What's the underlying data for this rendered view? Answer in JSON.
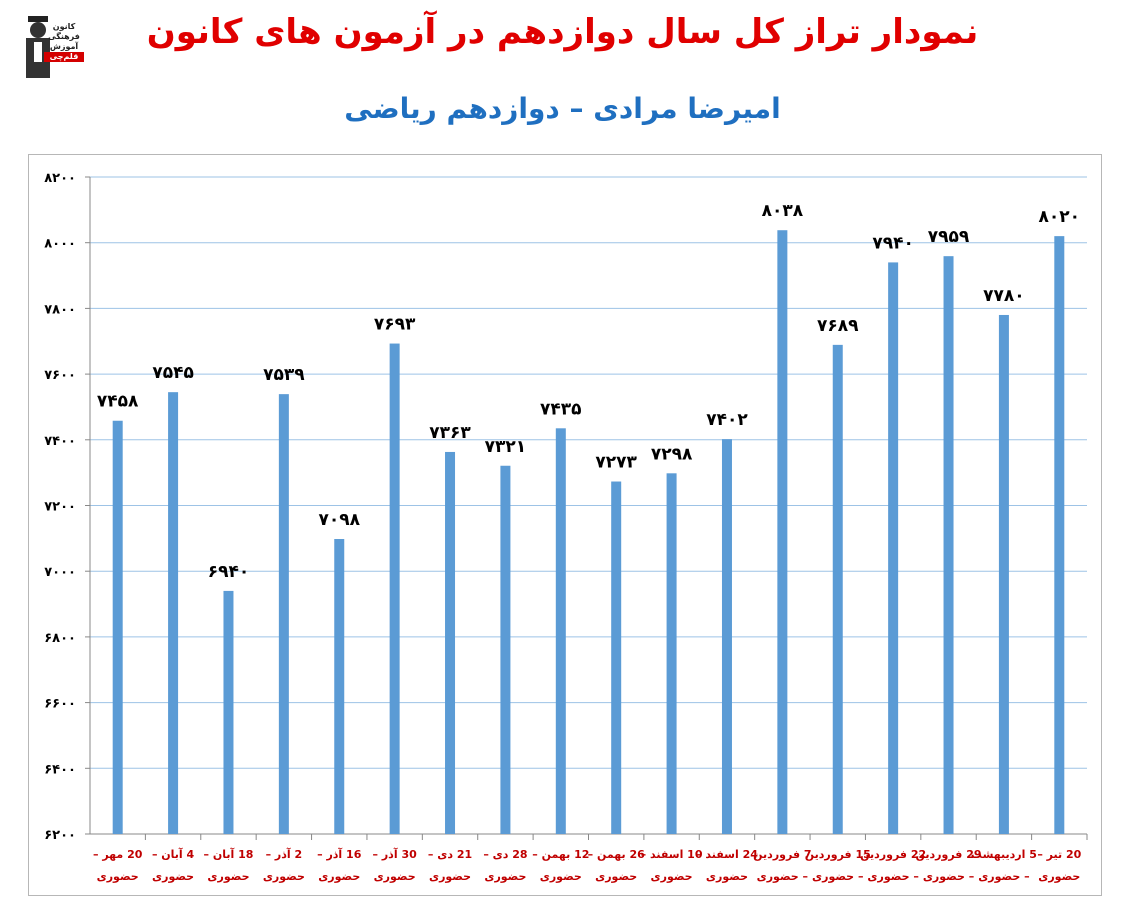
{
  "header": {
    "title": "نمودار تراز کل سال دوازدهم در آزمون های کانون",
    "subtitle": "امیرضا مرادی – دوازدهم ریاضی"
  },
  "logo": {
    "lines": [
      "کانون",
      "فرهنگی",
      "آموزش"
    ],
    "badge": "قلم‌چی"
  },
  "colors": {
    "title": "#e00000",
    "subtitle": "#1f6fc0",
    "bar": "#5b9bd5",
    "grid": "#9dc3e6",
    "xlabel": "#c00000"
  },
  "chart_data": {
    "type": "bar",
    "ylim": [
      6200,
      8200
    ],
    "yticks": [
      "۶۲۰۰",
      "۶۴۰۰",
      "۶۶۰۰",
      "۶۸۰۰",
      "۷۰۰۰",
      "۷۲۰۰",
      "۷۴۰۰",
      "۷۶۰۰",
      "۷۸۰۰",
      "۸۰۰۰",
      "۸۲۰۰"
    ],
    "grid": true,
    "categories": [
      [
        "20 مهر –",
        "حضوری"
      ],
      [
        "4 آبان –",
        "حضوری"
      ],
      [
        "18 آبان –",
        "حضوری"
      ],
      [
        "2 آذر –",
        "حضوری"
      ],
      [
        "16 آذر –",
        "حضوری"
      ],
      [
        "30 آذر –",
        "حضوری"
      ],
      [
        "21 دی –",
        "حضوری"
      ],
      [
        "28 دی –",
        "حضوری"
      ],
      [
        "12 بهمن –",
        "حضوری"
      ],
      [
        "26 بهمن –",
        "حضوری"
      ],
      [
        "10 اسفند –",
        "حضوری"
      ],
      [
        "24 اسفند –",
        "حضوری"
      ],
      [
        "7 فروردین",
        "– حضوری"
      ],
      [
        "15 فروردین",
        "– حضوری"
      ],
      [
        "22 فروردین",
        "– حضوری"
      ],
      [
        "29 فروردین",
        "– حضوری"
      ],
      [
        "5 اردیبهشت",
        "– حضوری"
      ],
      [
        "20 تیر –",
        "حضوری"
      ]
    ],
    "values": [
      7458,
      7545,
      6940,
      7539,
      7098,
      7693,
      7363,
      7321,
      7435,
      7273,
      7298,
      7402,
      8038,
      7689,
      7940,
      7959,
      7780,
      8020
    ],
    "value_labels": [
      "۷۴۵۸",
      "۷۵۴۵",
      "۶۹۴۰",
      "۷۵۳۹",
      "۷۰۹۸",
      "۷۶۹۳",
      "۷۳۶۳",
      "۷۳۲۱",
      "۷۴۳۵",
      "۷۲۷۳",
      "۷۲۹۸",
      "۷۴۰۲",
      "۸۰۳۸",
      "۷۶۸۹",
      "۷۹۴۰",
      "۷۹۵۹",
      "۷۷۸۰",
      "۸۰۲۰"
    ]
  }
}
